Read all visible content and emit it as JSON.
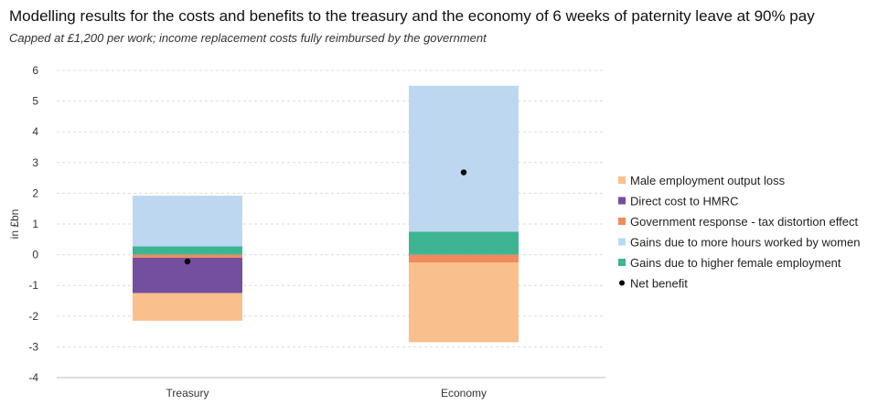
{
  "title": "Modelling results for the costs and benefits to the treasury and the economy of 6 weeks of paternity leave at 90% pay",
  "subtitle": "Capped at £1,200 per work; income replacement costs fully reimbursed by the government",
  "chart_data": {
    "type": "bar",
    "stacked": true,
    "categories": [
      "Treasury",
      "Economy"
    ],
    "ylabel": "in £bn",
    "ylim": [
      -4,
      6
    ],
    "yticks": [
      6,
      5,
      4,
      3,
      2,
      1,
      0,
      -1,
      -2,
      -3,
      -4
    ],
    "grid": true,
    "legend_position": "right",
    "series": [
      {
        "name": "Male employment output loss",
        "values": [
          -0.9,
          -2.6
        ],
        "color": "#F9C08E"
      },
      {
        "name": "Direct cost to HMRC",
        "values": [
          -1.15,
          0
        ],
        "color": "#744FA0"
      },
      {
        "name": "Government response - tax distortion effect",
        "values": [
          -0.1,
          -0.25
        ],
        "color": "#F08A5E"
      },
      {
        "name": "Gains due to more hours worked by women",
        "values": [
          1.65,
          4.75
        ],
        "color": "#BDD7F0"
      },
      {
        "name": "Gains due to higher female employment",
        "values": [
          0.27,
          0.75
        ],
        "color": "#3DB492"
      }
    ],
    "net_benefit": {
      "name": "Net benefit",
      "values": [
        -0.22,
        2.68
      ],
      "color": "#000000"
    },
    "stack_order": {
      "positive": [
        "Gains due to higher female employment",
        "Gains due to more hours worked by women"
      ],
      "negative": [
        "Government response - tax distortion effect",
        "Direct cost to HMRC",
        "Male employment output loss"
      ]
    }
  }
}
